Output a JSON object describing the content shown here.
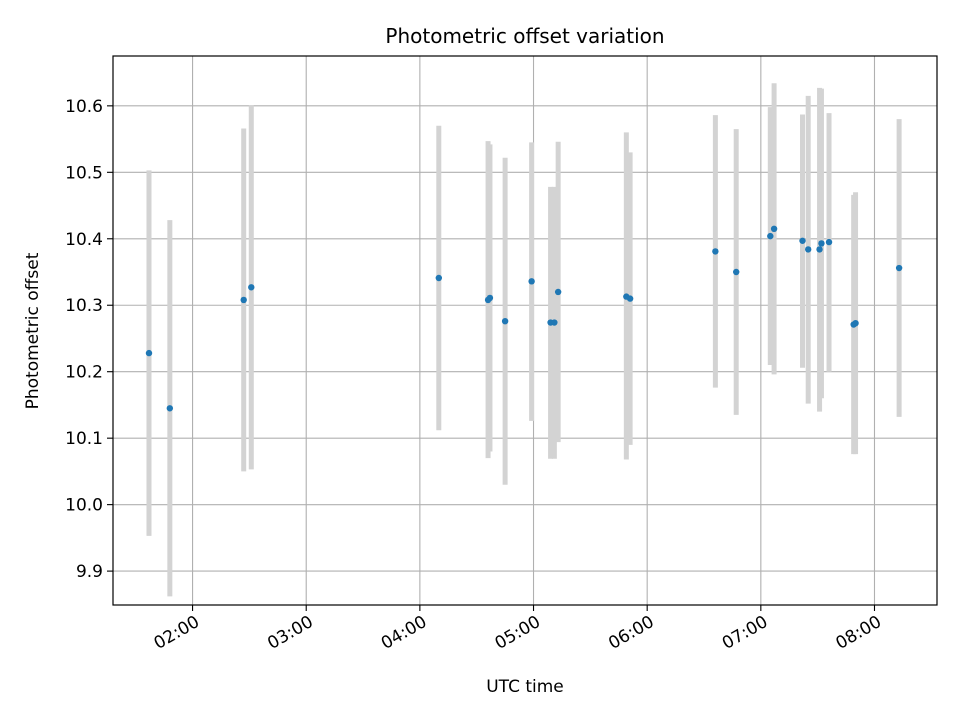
{
  "chart_data": {
    "type": "scatter",
    "title": "Photometric offset variation",
    "xlabel": "UTC time",
    "ylabel": "Photometric offset",
    "xlim": [
      "01:18",
      "08:33"
    ],
    "ylim": [
      9.849,
      10.675
    ],
    "xticks": [
      "02:00",
      "03:00",
      "04:00",
      "05:00",
      "06:00",
      "07:00",
      "08:00"
    ],
    "yticks": [
      9.9,
      10.0,
      10.1,
      10.2,
      10.3,
      10.4,
      10.5,
      10.6
    ],
    "ytick_labels": [
      "9.9",
      "10.0",
      "10.1",
      "10.2",
      "10.3",
      "10.4",
      "10.5",
      "10.6"
    ],
    "grid": true,
    "colors": {
      "points": "#1f77b4",
      "errorbars": "#d3d3d3",
      "grid": "#b0b0b0"
    },
    "points": [
      {
        "x": "01:37",
        "y": 10.228,
        "lo": 9.953,
        "hi": 10.503
      },
      {
        "x": "01:48",
        "y": 10.145,
        "lo": 9.862,
        "hi": 10.428
      },
      {
        "x": "02:27",
        "y": 10.308,
        "lo": 10.05,
        "hi": 10.566
      },
      {
        "x": "02:31",
        "y": 10.327,
        "lo": 10.053,
        "hi": 10.601
      },
      {
        "x": "04:10",
        "y": 10.341,
        "lo": 10.112,
        "hi": 10.57
      },
      {
        "x": "04:36",
        "y": 10.308,
        "lo": 10.07,
        "hi": 10.547
      },
      {
        "x": "04:37",
        "y": 10.311,
        "lo": 10.08,
        "hi": 10.542
      },
      {
        "x": "04:45",
        "y": 10.276,
        "lo": 10.03,
        "hi": 10.522
      },
      {
        "x": "04:59",
        "y": 10.336,
        "lo": 10.126,
        "hi": 10.545
      },
      {
        "x": "05:09",
        "y": 10.274,
        "lo": 10.069,
        "hi": 10.478
      },
      {
        "x": "05:11",
        "y": 10.274,
        "lo": 10.069,
        "hi": 10.478
      },
      {
        "x": "05:13",
        "y": 10.32,
        "lo": 10.094,
        "hi": 10.546
      },
      {
        "x": "05:49",
        "y": 10.313,
        "lo": 10.068,
        "hi": 10.56
      },
      {
        "x": "05:51",
        "y": 10.31,
        "lo": 10.09,
        "hi": 10.53
      },
      {
        "x": "06:36",
        "y": 10.381,
        "lo": 10.176,
        "hi": 10.586
      },
      {
        "x": "06:47",
        "y": 10.35,
        "lo": 10.135,
        "hi": 10.565
      },
      {
        "x": "07:05",
        "y": 10.404,
        "lo": 10.21,
        "hi": 10.598
      },
      {
        "x": "07:07",
        "y": 10.415,
        "lo": 10.196,
        "hi": 10.634
      },
      {
        "x": "07:22",
        "y": 10.397,
        "lo": 10.206,
        "hi": 10.587
      },
      {
        "x": "07:25",
        "y": 10.384,
        "lo": 10.152,
        "hi": 10.615
      },
      {
        "x": "07:31",
        "y": 10.384,
        "lo": 10.14,
        "hi": 10.627
      },
      {
        "x": "07:32",
        "y": 10.393,
        "lo": 10.16,
        "hi": 10.626
      },
      {
        "x": "07:36",
        "y": 10.395,
        "lo": 10.2,
        "hi": 10.589
      },
      {
        "x": "07:49",
        "y": 10.271,
        "lo": 10.076,
        "hi": 10.466
      },
      {
        "x": "07:50",
        "y": 10.273,
        "lo": 10.076,
        "hi": 10.47
      },
      {
        "x": "08:13",
        "y": 10.356,
        "lo": 10.132,
        "hi": 10.58
      }
    ]
  }
}
